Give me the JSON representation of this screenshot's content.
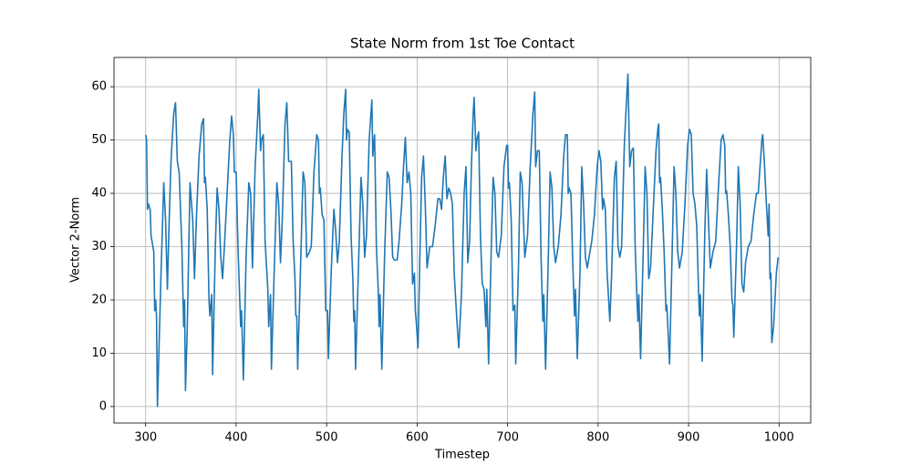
{
  "chart_data": {
    "type": "line",
    "title": "State Norm from 1st Toe Contact",
    "x_label": "Timestep",
    "y_label": "Vector 2-Norm",
    "color": "#1f77b4",
    "grid": true,
    "xlim": [
      265,
      1035
    ],
    "ylim": [
      -3.1,
      65.5
    ],
    "xticks": [
      300,
      400,
      500,
      600,
      700,
      800,
      900,
      1000
    ],
    "yticks": [
      0,
      10,
      20,
      30,
      40,
      50,
      60
    ],
    "x": [
      300,
      301,
      302,
      303,
      305,
      306,
      309,
      310,
      311,
      312,
      313,
      317,
      320,
      322,
      324,
      326,
      328,
      331,
      333,
      335,
      337,
      340,
      342,
      343,
      344,
      346,
      349,
      352,
      354,
      356,
      359,
      362,
      364,
      365,
      366,
      368,
      370,
      371,
      373,
      374,
      377,
      379,
      381,
      383,
      385,
      387,
      390,
      393,
      395,
      397,
      398,
      400,
      402,
      405,
      406,
      408,
      411,
      414,
      416,
      418,
      421,
      424,
      425,
      427,
      428,
      430,
      432,
      435,
      436,
      438,
      439,
      442,
      445,
      447,
      449,
      451,
      454,
      456,
      458,
      461,
      463,
      465,
      466,
      467,
      468,
      471,
      474,
      476,
      478,
      481,
      483,
      486,
      489,
      491,
      492,
      493,
      495,
      497,
      499,
      501,
      502,
      505,
      508,
      510,
      512,
      514,
      517,
      519,
      521,
      522,
      523,
      525,
      527,
      529,
      530,
      531,
      532,
      535,
      538,
      540,
      542,
      544,
      547,
      550,
      551,
      553,
      555,
      557,
      558,
      559,
      561,
      564,
      567,
      569,
      571,
      573,
      575,
      578,
      580,
      583,
      585,
      587,
      589,
      591,
      593,
      595,
      597,
      598,
      599,
      601,
      603,
      605,
      607,
      609,
      611,
      614,
      617,
      620,
      623,
      625,
      627,
      629,
      631,
      633,
      635,
      637,
      639,
      641,
      643,
      644,
      646,
      649,
      652,
      654,
      656,
      658,
      660,
      662,
      663,
      665,
      666,
      668,
      670,
      672,
      674,
      676,
      677,
      679,
      682,
      684,
      686,
      688,
      690,
      693,
      696,
      699,
      700,
      701,
      702,
      704,
      706,
      708,
      709,
      712,
      714,
      716,
      719,
      722,
      725,
      728,
      730,
      731,
      733,
      735,
      737,
      739,
      740,
      742,
      745,
      747,
      749,
      751,
      753,
      756,
      759,
      762,
      764,
      766,
      767,
      768,
      770,
      772,
      774,
      775,
      777,
      780,
      782,
      784,
      786,
      788,
      790,
      793,
      796,
      799,
      801,
      803,
      805,
      806,
      808,
      810,
      812,
      813,
      815,
      818,
      820,
      822,
      824,
      826,
      829,
      831,
      833,
      835,
      837,
      839,
      841,
      843,
      844,
      845,
      847,
      850,
      852,
      854,
      856,
      858,
      861,
      864,
      866,
      867,
      868,
      869,
      871,
      873,
      875,
      876,
      879,
      882,
      884,
      886,
      888,
      890,
      893,
      896,
      899,
      901,
      903,
      905,
      907,
      909,
      911,
      912,
      913,
      915,
      918,
      920,
      922,
      924,
      927,
      930,
      933,
      936,
      938,
      940,
      941,
      942,
      944,
      946,
      948,
      949,
      950,
      953,
      955,
      957,
      959,
      961,
      963,
      966,
      969,
      972,
      975,
      977,
      979,
      981,
      982,
      984,
      986,
      988,
      989,
      990,
      991,
      992,
      994,
      997,
      999
    ],
    "values": [
      51,
      50,
      37,
      38,
      37,
      32,
      29,
      18,
      20,
      17,
      0,
      25,
      42,
      35,
      22,
      35,
      46,
      55,
      57,
      46,
      44,
      30,
      15,
      20,
      3,
      15,
      42,
      35,
      24,
      35,
      47,
      53,
      54,
      42,
      43,
      37,
      20,
      17,
      21,
      6,
      30,
      41,
      37,
      28,
      24,
      30,
      40,
      50,
      54.5,
      51,
      44,
      44,
      30,
      15,
      18,
      5,
      28,
      42,
      40,
      26,
      45,
      55,
      59.5,
      48,
      50,
      51,
      31,
      22,
      15,
      21,
      7,
      25,
      42,
      38,
      27,
      35,
      53,
      57,
      46,
      46,
      31,
      24,
      17,
      17,
      7,
      25,
      44,
      42,
      28,
      29,
      30,
      44,
      51,
      50,
      40,
      41,
      36,
      35,
      18,
      18,
      9,
      25,
      37,
      33,
      27,
      31,
      47,
      55,
      59.5,
      50,
      52,
      51.5,
      32,
      24,
      16,
      18,
      7,
      25,
      43,
      38,
      28,
      32,
      50,
      57.5,
      47,
      51,
      30,
      22,
      15,
      21,
      7,
      28,
      44,
      43,
      37,
      28,
      27.5,
      27.5,
      31,
      38,
      45,
      50.5,
      42,
      44,
      40,
      23,
      25,
      18,
      16,
      11,
      28,
      43,
      47,
      38,
      26,
      30,
      30,
      34,
      39,
      39,
      37,
      43,
      47,
      39,
      41,
      40,
      38,
      25,
      19,
      16,
      11,
      21,
      40,
      45,
      27,
      31,
      45,
      55,
      58,
      48,
      50,
      51.5,
      32,
      23,
      22,
      15,
      22,
      8,
      30,
      43,
      40,
      29,
      28,
      32,
      45,
      49,
      49,
      41,
      42,
      35,
      18,
      19,
      8,
      26,
      44,
      42,
      28,
      32,
      45,
      55,
      59,
      45,
      48,
      48,
      28,
      16,
      21,
      7,
      28,
      44,
      41,
      30,
      27,
      30,
      36,
      47,
      51,
      51,
      40,
      41,
      40,
      27,
      17,
      22,
      9,
      25,
      45,
      38,
      28,
      26,
      28,
      31,
      36,
      45,
      48,
      46,
      37,
      39,
      37,
      25,
      19,
      16,
      25,
      43,
      46,
      30,
      28,
      30,
      49,
      56,
      62.4,
      45,
      48,
      48.5,
      30,
      20,
      16,
      21,
      9,
      30,
      45,
      40,
      24,
      26,
      37,
      48,
      52,
      53,
      42,
      43,
      37,
      29,
      18,
      19,
      8,
      30,
      45,
      40,
      29,
      26,
      29,
      38,
      49,
      52,
      51,
      40,
      38,
      34,
      22,
      17,
      21,
      8.5,
      33,
      44.5,
      35,
      26,
      29,
      31,
      41,
      50,
      51,
      49,
      40,
      40.5,
      36,
      30,
      20,
      19,
      13,
      30,
      45,
      38,
      23,
      21.5,
      27,
      30,
      31,
      36,
      40,
      40,
      45,
      50,
      51,
      45,
      38,
      32,
      38,
      24,
      25,
      12,
      15,
      25,
      28
    ]
  }
}
